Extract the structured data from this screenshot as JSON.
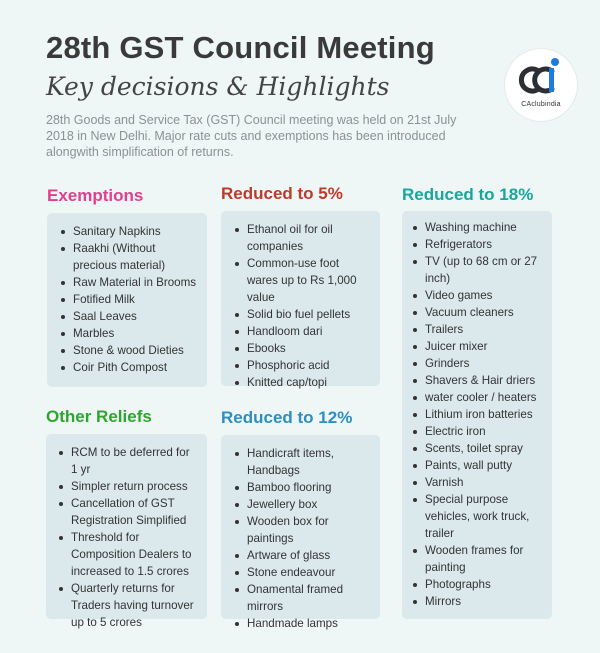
{
  "header": {
    "title": "28th GST Council Meeting",
    "subtitle": "Key decisions & Highlights",
    "intro": "28th Goods and Service Tax (GST) Council meeting was held on 21st July 2018 in New Delhi. Major rate cuts and exemptions has been introduced alongwith simplification of returns."
  },
  "logo": {
    "text": "CAclubindia",
    "icon": "caclubindia-logo",
    "colors": {
      "dark": "#2b2f33",
      "blue": "#1e7be0"
    }
  },
  "colors": {
    "exemptions": "#e0408f",
    "reduced5": "#c0392b",
    "reduced18": "#17a89a",
    "other": "#2fa52f",
    "reduced12": "#2d8fbf",
    "card": "#dbe9ec",
    "background": "#eef6f6"
  },
  "sections": {
    "exemptions": {
      "heading": "Exemptions",
      "items": [
        "Sanitary Napkins",
        "Raakhi (Without precious material)",
        "Raw Material in Brooms",
        "Fotified Milk",
        "Saal Leaves",
        "Marbles",
        "Stone & wood Dieties",
        "Coir Pith Compost"
      ]
    },
    "reduced5": {
      "heading": "Reduced to 5%",
      "items": [
        "Ethanol oil for oil companies",
        "Common-use foot wares up to Rs 1,000 value",
        "Solid bio fuel pellets",
        "Handloom dari",
        "Ebooks",
        "Phosphoric acid",
        "Knitted cap/topi"
      ]
    },
    "reduced18": {
      "heading": "Reduced to 18%",
      "items": [
        "Washing machine",
        "Refrigerators",
        "TV (up to 68 cm or 27 inch)",
        "Video games",
        "Vacuum cleaners",
        "Trailers",
        "Juicer mixer",
        "Grinders",
        "Shavers & Hair driers",
        "water cooler / heaters",
        "Lithium iron batteries",
        "Electric iron",
        "Scents, toilet spray",
        "Paints, wall putty",
        "Varnish",
        "Special purpose vehicles, work truck, trailer",
        "Wooden frames for painting",
        "Photographs",
        "Mirrors"
      ]
    },
    "other": {
      "heading": "Other Reliefs",
      "items": [
        "RCM to be deferred for 1 yr",
        "Simpler return process",
        "Cancellation of GST Registration Simplified",
        "Threshold for Composition Dealers to increased to 1.5 crores",
        "Quarterly returns for Traders having turnover up to 5 crores"
      ]
    },
    "reduced12": {
      "heading": "Reduced to 12%",
      "items": [
        "Handicraft items, Handbags",
        "Bamboo flooring",
        "Jewellery box",
        "Wooden box for paintings",
        "Artware of glass",
        "Stone endeavour",
        "Onamental framed mirrors",
        "Handmade lamps"
      ]
    }
  }
}
